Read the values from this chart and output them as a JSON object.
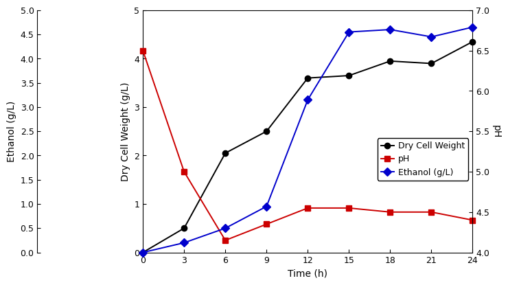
{
  "time": [
    0,
    3,
    6,
    9,
    12,
    15,
    18,
    21,
    24
  ],
  "dcw": [
    0.0,
    0.5,
    2.05,
    2.5,
    3.6,
    3.65,
    3.95,
    3.9,
    4.35
  ],
  "ph": [
    6.5,
    5.0,
    4.15,
    4.35,
    4.55,
    4.55,
    4.5,
    4.5,
    4.4
  ],
  "ethanol": [
    0.0,
    0.2,
    0.5,
    0.95,
    3.15,
    4.55,
    4.6,
    4.45,
    4.65
  ],
  "dcw_color": "#000000",
  "ph_color": "#cc0000",
  "ethanol_color": "#0000cc",
  "dcw_marker": "o",
  "ph_marker": "s",
  "ethanol_marker": "D",
  "xlabel": "Time (h)",
  "ylabel_dcw": "Dry Cell Weight (g/L)",
  "ylabel_ph": "pH",
  "ylabel_eth": "Ethanol (g/L)",
  "legend_labels": [
    "Dry Cell Weight",
    "pH",
    "Ethanol (g/L)"
  ],
  "xlim": [
    0,
    24
  ],
  "dcw_ylim": [
    0,
    5
  ],
  "ph_ylim": [
    4.0,
    7.0
  ],
  "eth_ylim": [
    0.0,
    5.0
  ],
  "xticks": [
    0,
    3,
    6,
    9,
    12,
    15,
    18,
    21,
    24
  ],
  "dcw_yticks": [
    0,
    1,
    2,
    3,
    4,
    5
  ],
  "ph_yticks": [
    4.0,
    4.5,
    5.0,
    5.5,
    6.0,
    6.5,
    7.0
  ],
  "eth_yticks": [
    0.0,
    0.5,
    1.0,
    1.5,
    2.0,
    2.5,
    3.0,
    3.5,
    4.0,
    4.5,
    5.0
  ],
  "markersize": 6,
  "linewidth": 1.4,
  "tick_fontsize": 9,
  "label_fontsize": 10,
  "legend_fontsize": 9
}
